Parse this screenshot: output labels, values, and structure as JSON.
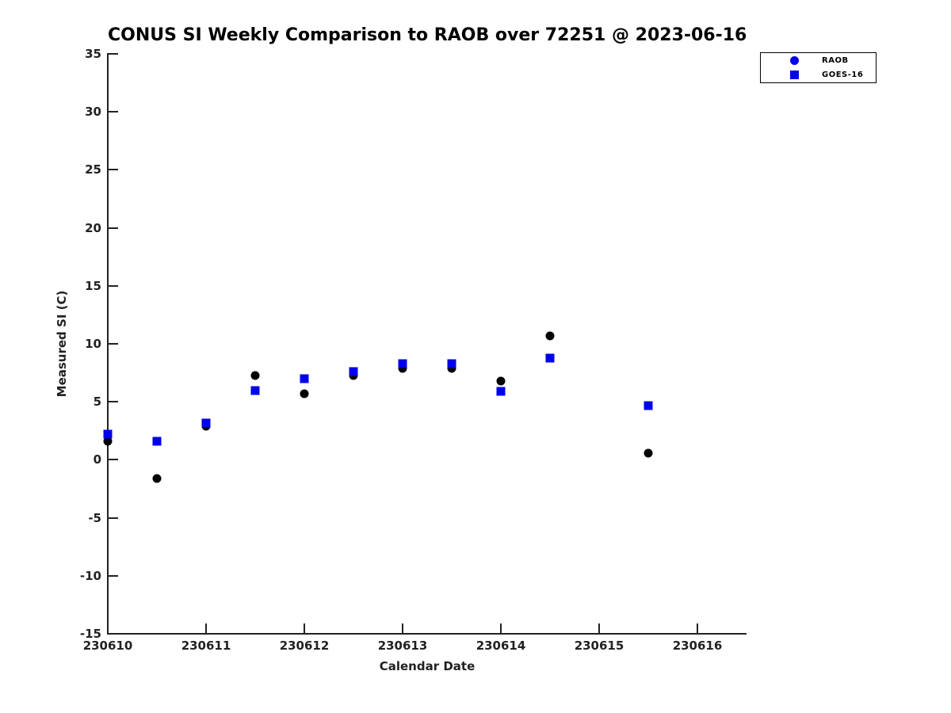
{
  "title": "CONUS SI Weekly Comparison to RAOB over 72251 @ 2023-06-16",
  "chart_data": {
    "type": "scatter",
    "title": "CONUS SI Weekly Comparison to RAOB over 72251 @ 2023-06-16",
    "xlabel": "Calendar Date",
    "ylabel": "Measured SI (C)",
    "xlim": [
      230610,
      230616.5
    ],
    "ylim": [
      -15,
      35
    ],
    "x_ticks": [
      230610,
      230611,
      230612,
      230613,
      230614,
      230615,
      230616
    ],
    "y_ticks": [
      35,
      30,
      25,
      20,
      15,
      10,
      5,
      0,
      -5,
      -10,
      -15
    ],
    "grid": false,
    "legend_position": "top-right",
    "colors": {
      "raob_marker": "#000000",
      "goes_marker": "#0000ee",
      "legend_raob_marker": "#0000ee",
      "axis": "#222222"
    },
    "series": [
      {
        "name": "RAOB",
        "marker": "circle",
        "color": "#000000",
        "points": [
          [
            230610.0,
            1.6
          ],
          [
            230610.5,
            -1.6
          ],
          [
            230611.0,
            2.9
          ],
          [
            230611.5,
            7.3
          ],
          [
            230612.0,
            5.7
          ],
          [
            230612.5,
            7.3
          ],
          [
            230613.0,
            7.9
          ],
          [
            230613.5,
            7.9
          ],
          [
            230614.0,
            6.8
          ],
          [
            230614.5,
            10.7
          ],
          [
            230615.5,
            0.6
          ]
        ]
      },
      {
        "name": "GOES-16",
        "marker": "square",
        "color": "#0000ee",
        "points": [
          [
            230610.0,
            2.2
          ],
          [
            230610.5,
            1.6
          ],
          [
            230611.0,
            3.2
          ],
          [
            230611.5,
            6.0
          ],
          [
            230612.0,
            7.0
          ],
          [
            230612.5,
            7.6
          ],
          [
            230613.0,
            8.3
          ],
          [
            230613.5,
            8.3
          ],
          [
            230614.0,
            5.9
          ],
          [
            230614.5,
            8.8
          ],
          [
            230615.5,
            4.7
          ]
        ]
      }
    ]
  }
}
